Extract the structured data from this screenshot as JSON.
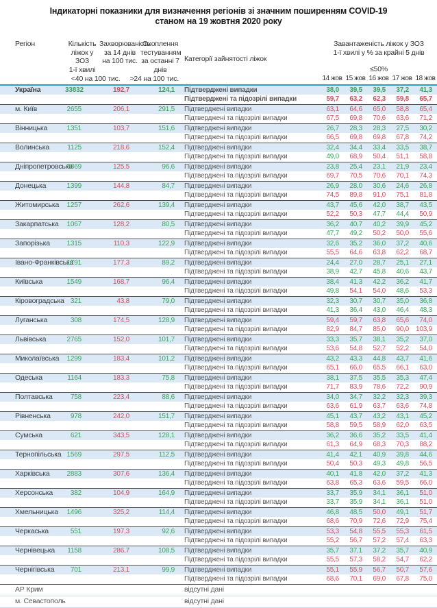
{
  "title": {
    "line1": "Індикаторні показники для визначення регіонів зі значним поширенням COVID-19",
    "line2": "станом на 19 жовтня 2020 року"
  },
  "header": {
    "region": "Регіон",
    "beds": "Кількість\nліжок у ЗОЗ\n1-ї хвилі",
    "incidence": "Захворюваність\nза 14 днів\nна 100 тис.",
    "testing": "Охоплення\nтестуванням\nза останні 7 днів",
    "category": "Категорії зайнятості ліжок",
    "occupancy": "Завантаженість ліжок у ЗОЗ\n1-ї хвилі у % за крайні 5 днів",
    "occupancy_threshold": "≤50%",
    "incidence_threshold": "<40 на 100 тис.",
    "testing_threshold": ">24 на 100 тис.",
    "dates": [
      "14 жов",
      "15 жов",
      "16 жов",
      "17 жов",
      "18 жов"
    ]
  },
  "labels": {
    "confirmed": "Підтверджені випадки",
    "suspected": "Підтверджені та підозрілі випадки",
    "no_data": "відсутні дані"
  },
  "colors": {
    "green": "#3d9f5e",
    "red": "#cb5063",
    "row_blue": "#dbe9f6",
    "teal_line": "#2f9db8"
  },
  "rows": [
    {
      "name": "Україна",
      "bold": true,
      "beds": "33832",
      "incidence": "192,7",
      "testing": "124,1",
      "confirmed": [
        "38,0",
        "39,5",
        "39,5",
        "37,2",
        "41,3"
      ],
      "suspected": [
        "59,7",
        "63,2",
        "62,3",
        "59,8",
        "65,7"
      ]
    },
    {
      "name": "м. Київ",
      "beds": "2655",
      "incidence": "206,1",
      "testing": "291,5",
      "confirmed": [
        "63,1",
        "64,6",
        "65,0",
        "58,8",
        "65,4"
      ],
      "suspected": [
        "67,5",
        "69,8",
        "70,6",
        "63,6",
        "71,2"
      ]
    },
    {
      "name": "Вінницька",
      "beds": "1351",
      "incidence": "103,7",
      "testing": "151,6",
      "confirmed": [
        "26,7",
        "28,3",
        "28,3",
        "27,5",
        "30,2"
      ],
      "suspected": [
        "66,5",
        "69,8",
        "69,8",
        "67,8",
        "74,2"
      ]
    },
    {
      "name": "Волинська",
      "beds": "1125",
      "incidence": "218,6",
      "testing": "152,4",
      "confirmed": [
        "32,4",
        "34,4",
        "33,4",
        "33,5",
        "38,7"
      ],
      "suspected": [
        "49,0",
        "68,9",
        "50,4",
        "51,1",
        "58,8"
      ]
    },
    {
      "name": "Дніпропетровська",
      "beds": "3369",
      "incidence": "125,5",
      "testing": "96,6",
      "confirmed": [
        "23,8",
        "25,4",
        "23,1",
        "21,9",
        "23,4"
      ],
      "suspected": [
        "69,7",
        "70,5",
        "70,6",
        "70,1",
        "74,3"
      ]
    },
    {
      "name": "Донецька",
      "beds": "1399",
      "incidence": "144,8",
      "testing": "84,7",
      "confirmed": [
        "26,9",
        "28,0",
        "30,6",
        "24,6",
        "26,8"
      ],
      "suspected": [
        "74,5",
        "89,8",
        "91,0",
        "75,1",
        "81,8"
      ]
    },
    {
      "name": "Житомирська",
      "beds": "1257",
      "incidence": "262,6",
      "testing": "139,4",
      "confirmed": [
        "43,7",
        "45,6",
        "42,0",
        "38,7",
        "43,5"
      ],
      "suspected": [
        "52,2",
        "50,3",
        "47,7",
        "44,4",
        "50,9"
      ]
    },
    {
      "name": "Закарпатська",
      "beds": "1067",
      "incidence": "128,2",
      "testing": "80,5",
      "confirmed": [
        "36,2",
        "40,7",
        "40,2",
        "39,9",
        "45,2"
      ],
      "suspected": [
        "47,7",
        "49,2",
        "50,2",
        "50,0",
        "55,6"
      ]
    },
    {
      "name": "Запорізька",
      "beds": "1315",
      "incidence": "110,3",
      "testing": "122,9",
      "confirmed": [
        "32,6",
        "35,2",
        "36,0",
        "37,2",
        "40,6"
      ],
      "suspected": [
        "55,5",
        "64,6",
        "63,8",
        "62,2",
        "68,7"
      ]
    },
    {
      "name": "Івано-Франківська",
      "beds": "1791",
      "incidence": "177,3",
      "testing": "89,2",
      "confirmed": [
        "24,4",
        "27,0",
        "28,7",
        "25,1",
        "27,1"
      ],
      "suspected": [
        "38,9",
        "42,7",
        "45,8",
        "40,6",
        "43,7"
      ]
    },
    {
      "name": "Київська",
      "beds": "1549",
      "incidence": "168,7",
      "testing": "96,4",
      "confirmed": [
        "38,4",
        "41,3",
        "42,2",
        "36,2",
        "41,7"
      ],
      "suspected": [
        "49,8",
        "54,1",
        "54,0",
        "48,6",
        "53,3"
      ]
    },
    {
      "name": "Кіровоградська",
      "beds": "321",
      "incidence": "43,8",
      "testing": "79,0",
      "confirmed": [
        "32,3",
        "30,7",
        "30,7",
        "35,0",
        "36,8"
      ],
      "suspected": [
        "41,3",
        "36,4",
        "43,0",
        "46,4",
        "48,3"
      ]
    },
    {
      "name": "Луганська",
      "beds": "308",
      "incidence": "174,5",
      "testing": "128,9",
      "confirmed": [
        "59,4",
        "59,7",
        "63,8",
        "65,6",
        "74,0"
      ],
      "suspected": [
        "82,9",
        "84,7",
        "85,0",
        "90,0",
        "103,9"
      ]
    },
    {
      "name": "Львівська",
      "beds": "2765",
      "incidence": "152,0",
      "testing": "101,7",
      "confirmed": [
        "33,3",
        "35,7",
        "38,1",
        "35,2",
        "37,0"
      ],
      "suspected": [
        "53,6",
        "54,8",
        "52,7",
        "52,2",
        "54,0"
      ]
    },
    {
      "name": "Миколаївська",
      "beds": "1299",
      "incidence": "183,4",
      "testing": "101,2",
      "confirmed": [
        "43,2",
        "43,3",
        "44,8",
        "43,7",
        "41,6"
      ],
      "suspected": [
        "65,1",
        "66,0",
        "65,5",
        "66,1",
        "63,0"
      ]
    },
    {
      "name": "Одеська",
      "beds": "1164",
      "incidence": "183,3",
      "testing": "75,8",
      "confirmed": [
        "38,1",
        "37,5",
        "35,5",
        "35,3",
        "47,4"
      ],
      "suspected": [
        "71,7",
        "83,9",
        "78,6",
        "72,2",
        "90,9"
      ]
    },
    {
      "name": "Полтавська",
      "beds": "758",
      "incidence": "223,4",
      "testing": "88,6",
      "confirmed": [
        "34,0",
        "34,7",
        "32,2",
        "32,3",
        "39,3"
      ],
      "suspected": [
        "63,6",
        "61,9",
        "63,7",
        "63,6",
        "74,8"
      ]
    },
    {
      "name": "Рівненська",
      "beds": "978",
      "incidence": "242,0",
      "testing": "151,7",
      "confirmed": [
        "45,1",
        "43,7",
        "43,2",
        "43,1",
        "45,2"
      ],
      "suspected": [
        "58,8",
        "59,5",
        "58,9",
        "62,0",
        "63,5"
      ]
    },
    {
      "name": "Сумська",
      "beds": "621",
      "incidence": "343,5",
      "testing": "128,1",
      "confirmed": [
        "36,2",
        "36,6",
        "35,2",
        "33,5",
        "41,4"
      ],
      "suspected": [
        "61,3",
        "64,9",
        "68,3",
        "70,3",
        "88,2"
      ]
    },
    {
      "name": "Тернопільська",
      "beds": "1569",
      "incidence": "297,5",
      "testing": "112,5",
      "confirmed": [
        "41,4",
        "42,1",
        "40,9",
        "39,8",
        "44,6"
      ],
      "suspected": [
        "50,4",
        "50,3",
        "49,3",
        "49,8",
        "56,5"
      ]
    },
    {
      "name": "Харківська",
      "beds": "2883",
      "incidence": "307,6",
      "testing": "136,4",
      "confirmed": [
        "40,1",
        "41,8",
        "42,0",
        "37,2",
        "41,3"
      ],
      "suspected": [
        "63,8",
        "65,3",
        "63,6",
        "59,5",
        "66,0"
      ]
    },
    {
      "name": "Херсонська",
      "beds": "382",
      "incidence": "104,9",
      "testing": "164,9",
      "confirmed": [
        "33,7",
        "35,9",
        "34,1",
        "36,1",
        "51,0"
      ],
      "suspected": [
        "33,7",
        "35,9",
        "34,1",
        "36,1",
        "51,0"
      ]
    },
    {
      "name": "Хмельницька",
      "beds": "1496",
      "incidence": "325,2",
      "testing": "114,4",
      "confirmed": [
        "46,8",
        "48,5",
        "50,0",
        "49,1",
        "51,7"
      ],
      "suspected": [
        "68,6",
        "70,9",
        "72,6",
        "72,9",
        "75,4"
      ]
    },
    {
      "name": "Черкаська",
      "beds": "551",
      "incidence": "197,3",
      "testing": "92,6",
      "confirmed": [
        "53,3",
        "54,8",
        "55,5",
        "55,3",
        "61,5"
      ],
      "suspected": [
        "55,2",
        "56,7",
        "57,2",
        "57,4",
        "63,3"
      ]
    },
    {
      "name": "Чернівецька",
      "beds": "1158",
      "incidence": "286,7",
      "testing": "108,5",
      "confirmed": [
        "35,7",
        "37,1",
        "37,2",
        "35,7",
        "40,9"
      ],
      "suspected": [
        "55,5",
        "57,3",
        "58,2",
        "54,7",
        "62,2"
      ]
    },
    {
      "name": "Чернігівська",
      "beds": "701",
      "incidence": "213,1",
      "testing": "99,9",
      "confirmed": [
        "55,1",
        "55,9",
        "56,7",
        "50,7",
        "57,6"
      ],
      "suspected": [
        "68,6",
        "70,1",
        "69,0",
        "67,8",
        "75,0"
      ]
    }
  ],
  "no_data_rows": [
    "АР Крим",
    "м. Севастополь"
  ]
}
